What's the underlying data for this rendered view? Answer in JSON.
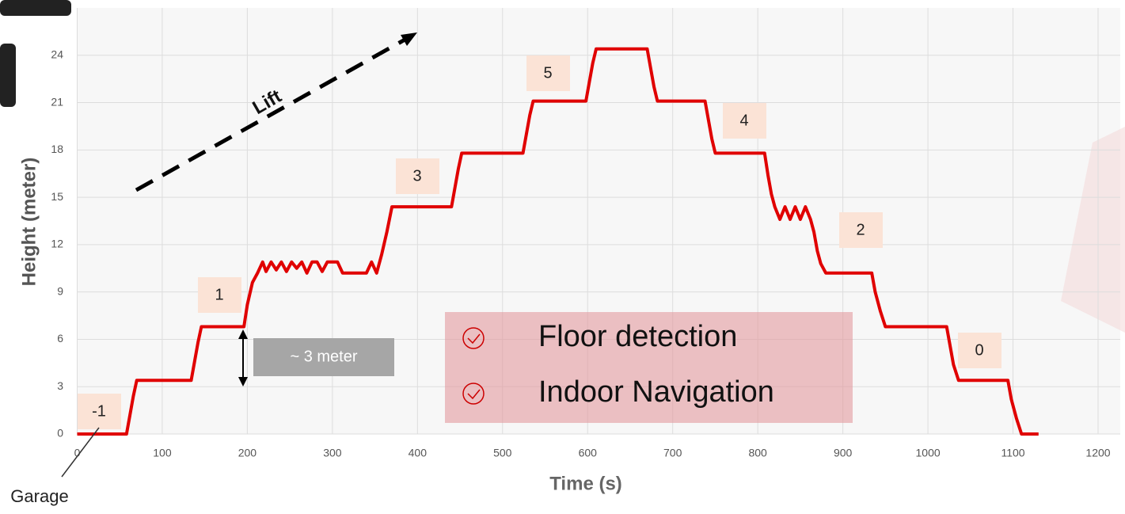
{
  "chart_data": {
    "type": "line",
    "x_label": "Time (s)",
    "y_label": "Height (meter)",
    "color": "#e00000",
    "x": [
      0,
      58,
      62,
      66,
      70,
      134,
      138,
      142,
      146,
      196,
      200,
      206,
      212,
      218,
      222,
      228,
      234,
      240,
      246,
      252,
      258,
      264,
      270,
      276,
      282,
      288,
      294,
      300,
      306,
      312,
      340,
      346,
      352,
      358,
      364,
      370,
      440,
      444,
      448,
      452,
      524,
      528,
      532,
      536,
      598,
      602,
      606,
      610,
      670,
      674,
      678,
      682,
      738,
      742,
      746,
      750,
      808,
      812,
      816,
      820,
      826,
      832,
      838,
      844,
      850,
      856,
      862,
      866,
      870,
      874,
      880,
      934,
      938,
      944,
      950,
      1022,
      1026,
      1030,
      1036,
      1094,
      1098,
      1104,
      1110,
      1130
    ],
    "values": [
      0,
      0,
      1.2,
      2.4,
      3.4,
      3.4,
      4.6,
      5.8,
      6.8,
      6.8,
      8.2,
      9.6,
      10.2,
      10.9,
      10.3,
      10.9,
      10.4,
      10.9,
      10.3,
      10.9,
      10.5,
      10.9,
      10.2,
      10.9,
      10.9,
      10.3,
      10.9,
      10.9,
      10.9,
      10.2,
      10.2,
      10.9,
      10.2,
      11.4,
      12.8,
      14.4,
      14.4,
      15.6,
      16.8,
      17.8,
      17.8,
      19,
      20.2,
      21.1,
      21.1,
      22.3,
      23.5,
      24.4,
      24.4,
      23.2,
      22,
      21.1,
      21.1,
      19.9,
      18.7,
      17.8,
      17.8,
      16.4,
      15.2,
      14.4,
      13.6,
      14.4,
      13.6,
      14.4,
      13.6,
      14.4,
      13.6,
      12.8,
      11.6,
      10.8,
      10.2,
      10.2,
      9,
      7.8,
      6.8,
      6.8,
      5.6,
      4.4,
      3.4,
      3.4,
      2.2,
      1,
      0,
      0
    ],
    "xlim": [
      0,
      1200
    ],
    "ylim": [
      0,
      27
    ],
    "xticks": [
      0,
      100,
      200,
      300,
      400,
      500,
      600,
      700,
      800,
      900,
      1000,
      1100,
      1200
    ],
    "yticks": [
      0,
      3,
      6,
      9,
      12,
      15,
      18,
      21,
      24
    ],
    "grid": true,
    "floor_labels": [
      "-1",
      "1",
      "3",
      "5",
      "4",
      "2",
      "0"
    ],
    "gap_label": "~ 3 meter",
    "lift_label": "Lift",
    "garage_label": "Garage",
    "features": [
      "Floor detection",
      "Indoor Navigation"
    ]
  }
}
